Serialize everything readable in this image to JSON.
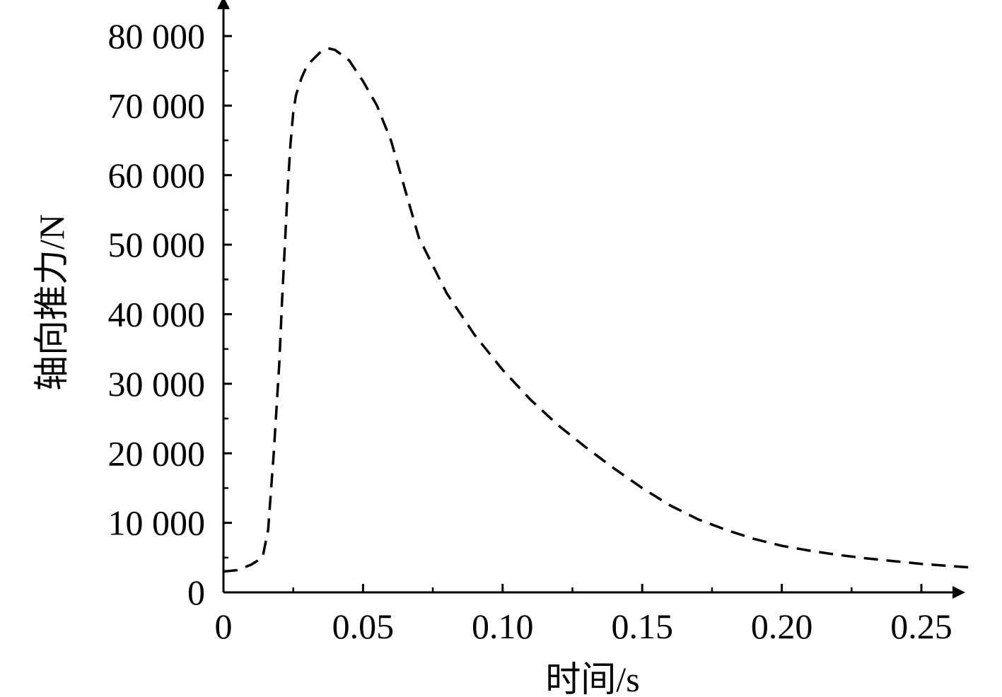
{
  "chart_data": {
    "type": "line",
    "title": "",
    "xlabel": "时间/s",
    "ylabel": "轴向推力/N",
    "xlim": [
      0,
      0.27
    ],
    "ylim": [
      0,
      80000
    ],
    "x_ticks": [
      0,
      0.05,
      0.1,
      0.15,
      0.2,
      0.25
    ],
    "x_tick_labels": [
      "0",
      "0.05",
      "0.10",
      "0.15",
      "0.20",
      "0.25"
    ],
    "y_ticks": [
      0,
      10000,
      20000,
      30000,
      40000,
      50000,
      60000,
      70000,
      80000
    ],
    "y_tick_labels": [
      "0",
      "10 000",
      "20 000",
      "30 000",
      "40 000",
      "50 000",
      "60 000",
      "70 000",
      "80 000"
    ],
    "grid": false,
    "line_style": "dashed",
    "line_color": "#000000",
    "series": [
      {
        "x": [
          0,
          0.005,
          0.01,
          0.014,
          0.016,
          0.018,
          0.02,
          0.021,
          0.022,
          0.023,
          0.024,
          0.025,
          0.026,
          0.028,
          0.03,
          0.035,
          0.038,
          0.04,
          0.045,
          0.05,
          0.055,
          0.06,
          0.065,
          0.07,
          0.08,
          0.09,
          0.1,
          0.11,
          0.12,
          0.13,
          0.14,
          0.15,
          0.16,
          0.17,
          0.18,
          0.19,
          0.2,
          0.21,
          0.22,
          0.23,
          0.24,
          0.25,
          0.26,
          0.267
        ],
        "y": [
          3000,
          3200,
          4000,
          5000,
          9000,
          20000,
          33000,
          42000,
          50000,
          58000,
          64500,
          69000,
          71500,
          74000,
          75800,
          77800,
          78200,
          78000,
          76500,
          73500,
          70000,
          65000,
          58000,
          51000,
          43000,
          37000,
          32000,
          27700,
          24000,
          20800,
          17800,
          15000,
          12500,
          10500,
          9000,
          7700,
          6700,
          6000,
          5400,
          4900,
          4500,
          4100,
          3800,
          3600
        ]
      }
    ]
  }
}
